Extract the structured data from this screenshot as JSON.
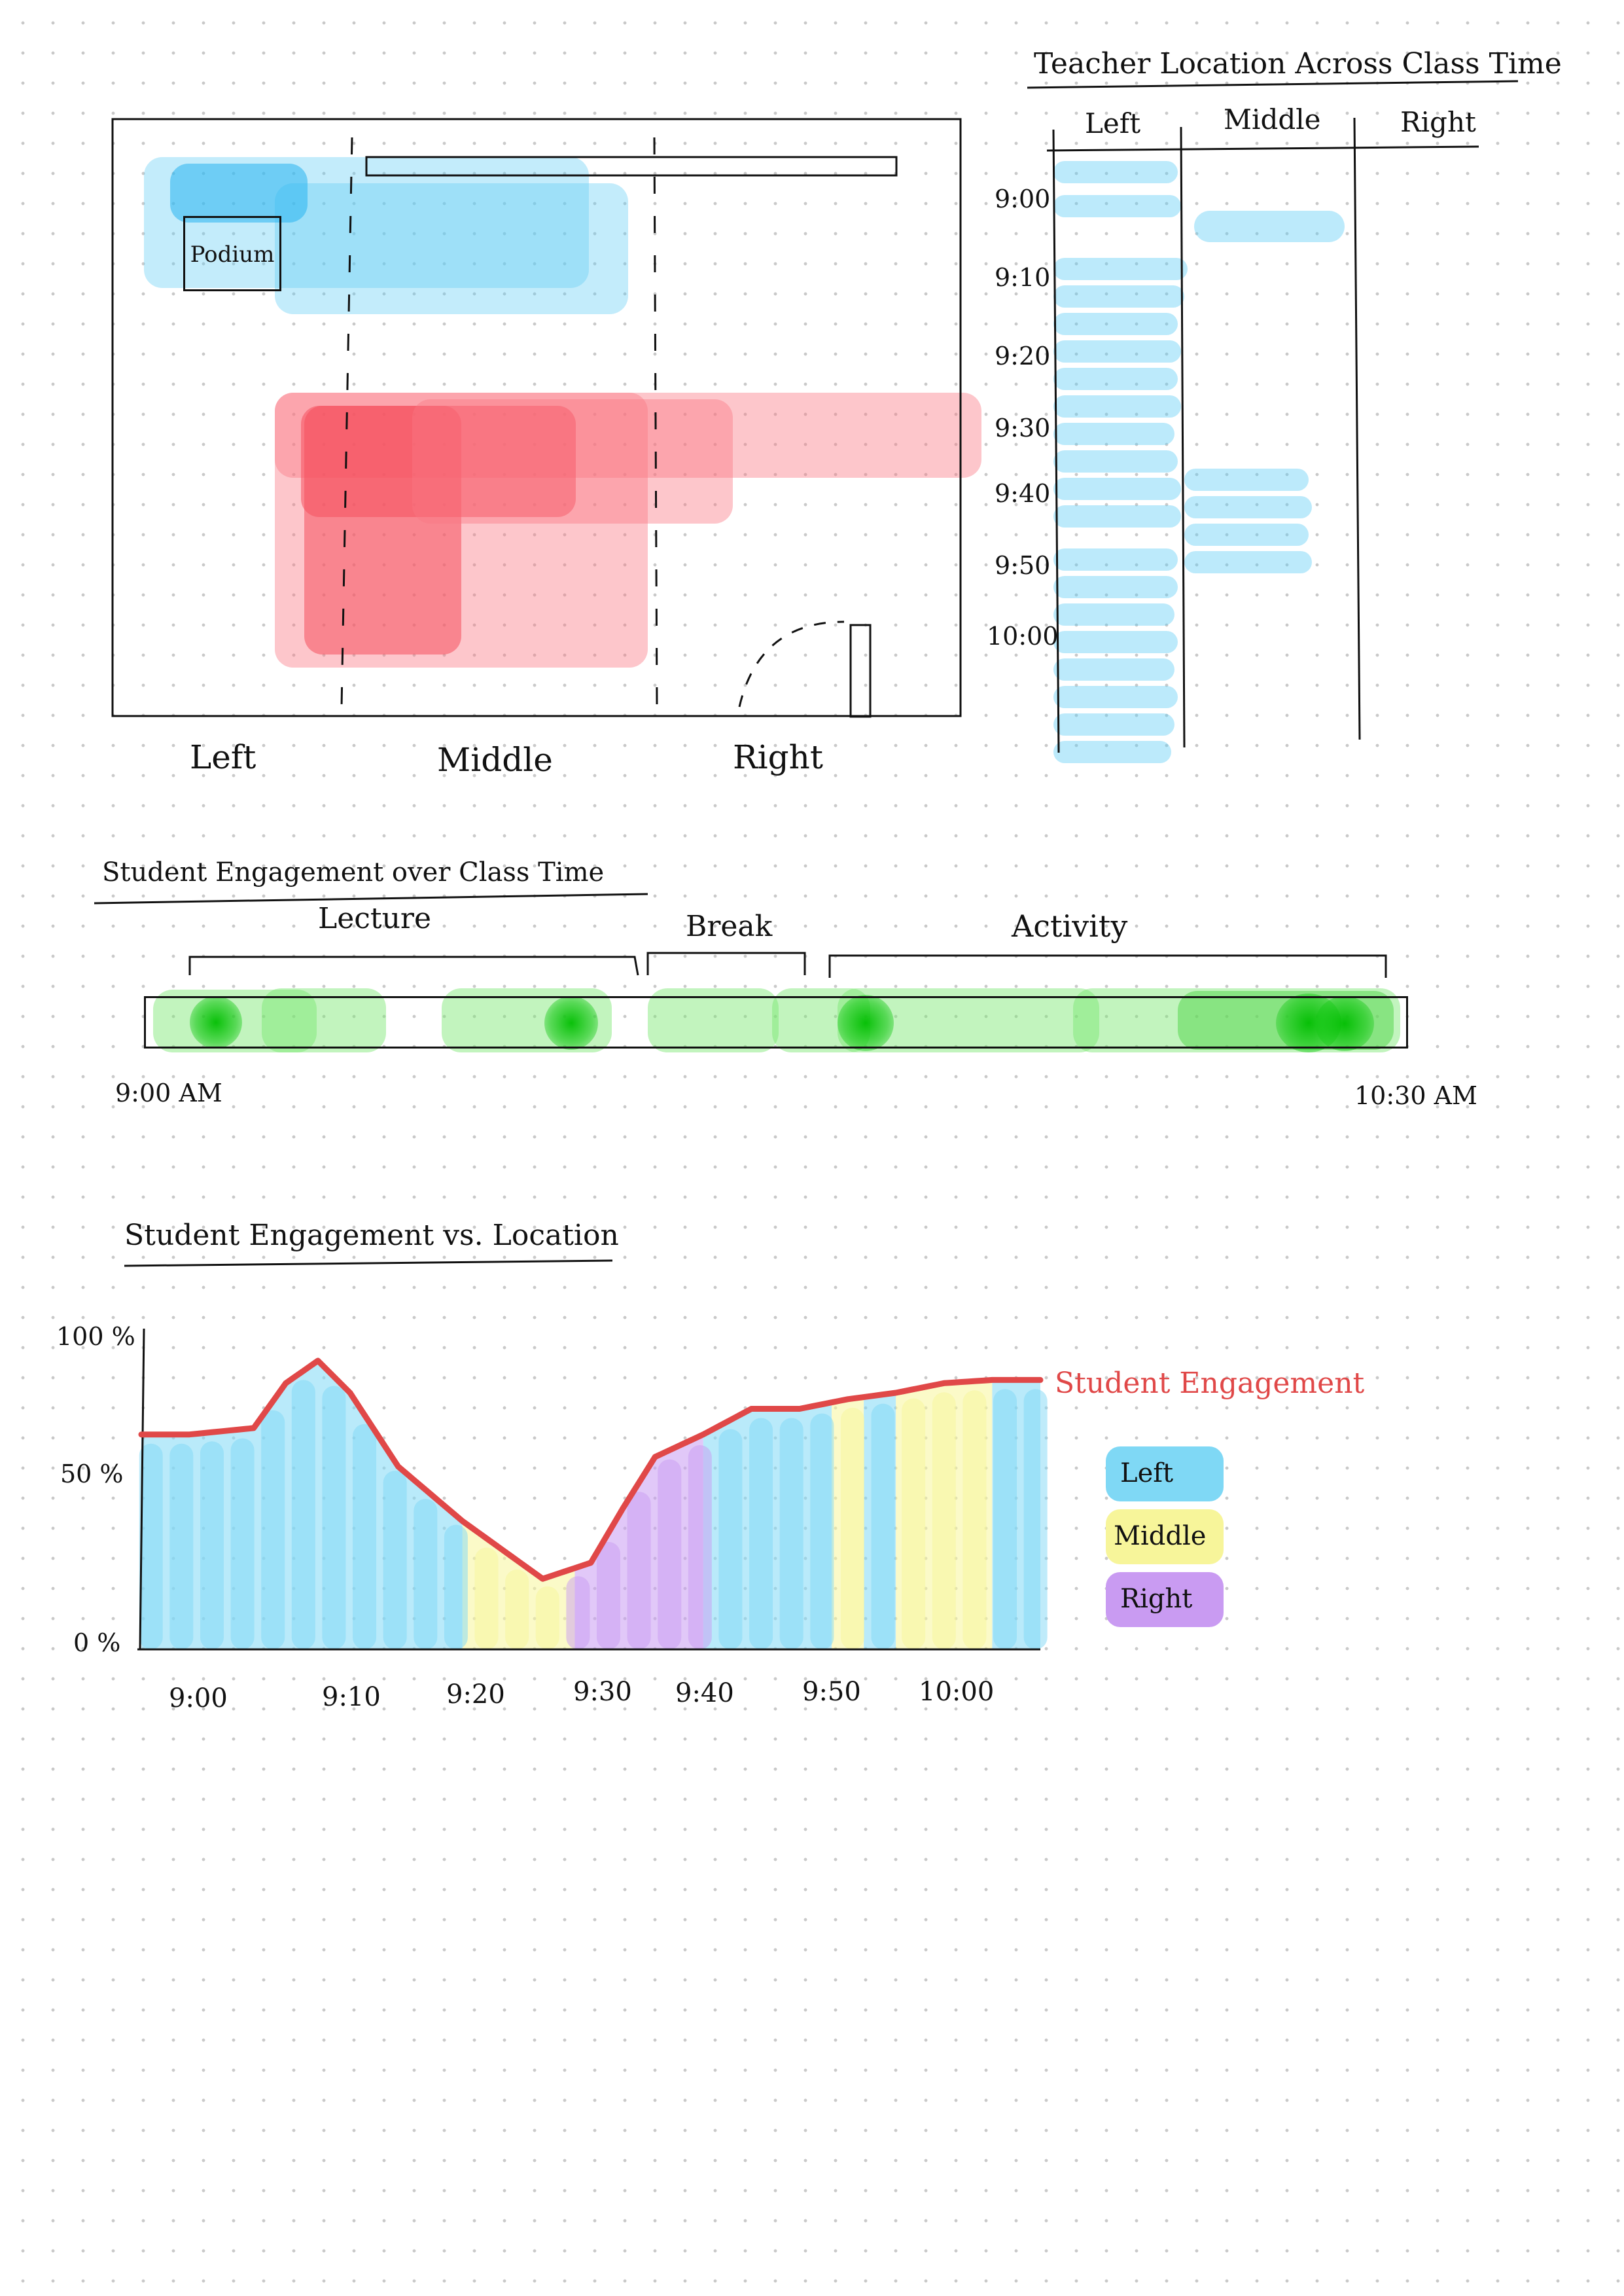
{
  "classroom": {
    "podium_label": "Podium",
    "zones": [
      "Left",
      "Middle",
      "Right"
    ]
  },
  "teacher_location": {
    "title": "Teacher Location Across Class Time",
    "columns": [
      "Left",
      "Middle",
      "Right"
    ],
    "times": [
      "9:00",
      "9:10",
      "9:20",
      "9:30",
      "9:40",
      "9:50",
      "10:00"
    ]
  },
  "engagement_timeline": {
    "title": "Student Engagement over Class Time",
    "phases": [
      "Lecture",
      "Break",
      "Activity"
    ],
    "start_label": "9:00 AM",
    "end_label": "10:30 AM",
    "colors": {
      "engagement": "#33cc33"
    }
  },
  "chart_data": {
    "type": "area",
    "title": "Student Engagement vs. Location",
    "y_ticks": [
      "100 %",
      "50 %",
      "0 %"
    ],
    "ylim": [
      0,
      100
    ],
    "x_ticks": [
      "9:00",
      "9:10",
      "9:20",
      "9:30",
      "9:40",
      "9:50",
      "10:00"
    ],
    "series": [
      {
        "name": "Student Engagement",
        "color": "#e04848",
        "x": [
          0,
          3,
          7,
          9,
          11,
          13,
          16,
          20,
          25,
          28,
          30,
          32,
          35,
          38,
          41,
          44,
          47,
          50,
          53,
          56
        ],
        "values": [
          67,
          67,
          69,
          83,
          90,
          80,
          57,
          40,
          22,
          27,
          44,
          60,
          67,
          75,
          75,
          78,
          80,
          83,
          84,
          84
        ]
      }
    ],
    "location_bands": [
      {
        "zone": "Left",
        "start": 0,
        "end": 20
      },
      {
        "zone": "Middle",
        "start": 20,
        "end": 27
      },
      {
        "zone": "Right",
        "start": 27,
        "end": 35
      },
      {
        "zone": "Left",
        "start": 35,
        "end": 43
      },
      {
        "zone": "Middle",
        "start": 43,
        "end": 45
      },
      {
        "zone": "Left",
        "start": 45,
        "end": 47
      },
      {
        "zone": "Middle",
        "start": 47,
        "end": 53
      },
      {
        "zone": "Left",
        "start": 53,
        "end": 56
      }
    ],
    "legend": [
      {
        "label": "Left",
        "color": "#7fd8f5"
      },
      {
        "label": "Middle",
        "color": "#f7f59a"
      },
      {
        "label": "Right",
        "color": "#c99bf2"
      }
    ]
  }
}
